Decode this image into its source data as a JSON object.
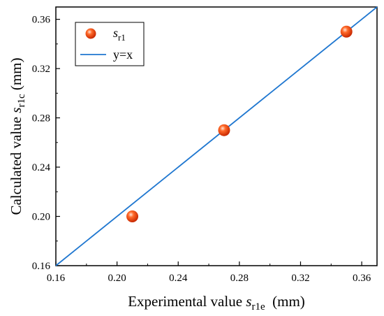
{
  "chart_data": {
    "type": "scatter",
    "x_axis": {
      "label_prefix": "Experimental value ",
      "var": "s",
      "sub": "r1e",
      "label_suffix": "  (mm)",
      "lim": [
        0.16,
        0.37
      ],
      "ticks": [
        0.16,
        0.2,
        0.24,
        0.28,
        0.32,
        0.36
      ],
      "tick_labels": [
        "0.16",
        "0.20",
        "0.24",
        "0.28",
        "0.32",
        "0.36"
      ]
    },
    "y_axis": {
      "label_prefix": "Calculated value ",
      "var": "s",
      "sub": "r1c",
      "label_suffix": " (mm)",
      "lim": [
        0.16,
        0.37
      ],
      "ticks": [
        0.16,
        0.2,
        0.24,
        0.28,
        0.32,
        0.36
      ],
      "tick_labels": [
        "0.16",
        "0.20",
        "0.24",
        "0.28",
        "0.32",
        "0.36"
      ]
    },
    "series": [
      {
        "name_var": "s",
        "name_sub": "r1",
        "kind": "scatter",
        "color": "#ff4a10",
        "x": [
          0.21,
          0.27,
          0.35
        ],
        "y": [
          0.2,
          0.27,
          0.35
        ]
      },
      {
        "name": "y=x",
        "kind": "line",
        "color": "#1f77d0",
        "x": [
          0.16,
          0.37
        ],
        "y": [
          0.16,
          0.37
        ]
      }
    ],
    "legend": {
      "placement": "top-left"
    },
    "grid": false
  }
}
